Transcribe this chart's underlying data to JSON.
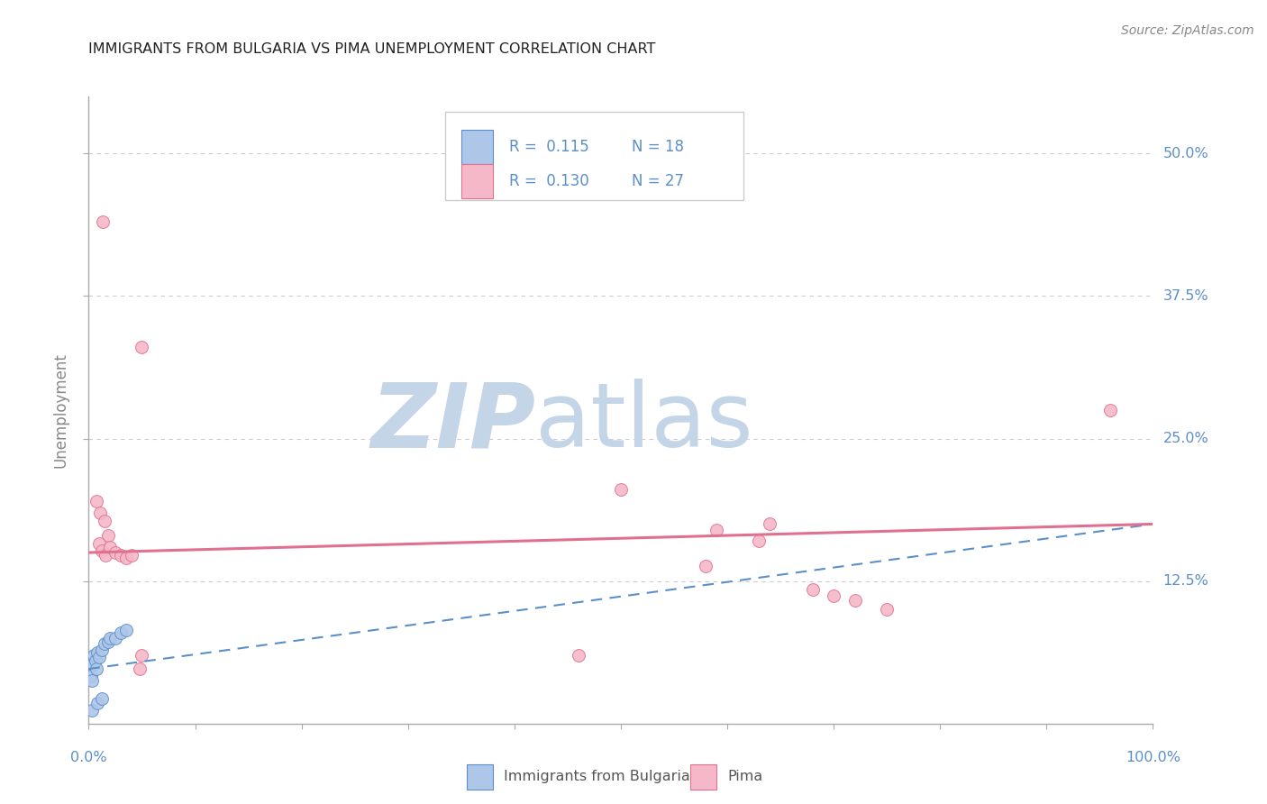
{
  "title": "IMMIGRANTS FROM BULGARIA VS PIMA UNEMPLOYMENT CORRELATION CHART",
  "source": "Source: ZipAtlas.com",
  "ylabel": "Unemployment",
  "xlim": [
    0.0,
    1.0
  ],
  "ylim": [
    0.0,
    0.55
  ],
  "yticks": [
    0.125,
    0.25,
    0.375,
    0.5
  ],
  "ytick_labels": [
    "12.5%",
    "25.0%",
    "37.5%",
    "50.0%"
  ],
  "legend_R_blue": "R =  0.115",
  "legend_N_blue": "N = 18",
  "legend_R_pink": "R =  0.130",
  "legend_N_pink": "N = 27",
  "blue_scatter": [
    [
      0.002,
      0.042
    ],
    [
      0.003,
      0.038
    ],
    [
      0.004,
      0.052
    ],
    [
      0.005,
      0.06
    ],
    [
      0.006,
      0.055
    ],
    [
      0.007,
      0.048
    ],
    [
      0.008,
      0.062
    ],
    [
      0.01,
      0.058
    ],
    [
      0.012,
      0.065
    ],
    [
      0.015,
      0.07
    ],
    [
      0.018,
      0.072
    ],
    [
      0.02,
      0.075
    ],
    [
      0.025,
      0.075
    ],
    [
      0.03,
      0.08
    ],
    [
      0.035,
      0.082
    ],
    [
      0.003,
      0.012
    ],
    [
      0.008,
      0.018
    ],
    [
      0.012,
      0.022
    ]
  ],
  "pink_scatter": [
    [
      0.013,
      0.44
    ],
    [
      0.05,
      0.33
    ],
    [
      0.007,
      0.195
    ],
    [
      0.011,
      0.185
    ],
    [
      0.015,
      0.178
    ],
    [
      0.018,
      0.165
    ],
    [
      0.01,
      0.158
    ],
    [
      0.012,
      0.152
    ],
    [
      0.016,
      0.148
    ],
    [
      0.02,
      0.155
    ],
    [
      0.025,
      0.15
    ],
    [
      0.03,
      0.148
    ],
    [
      0.035,
      0.145
    ],
    [
      0.04,
      0.148
    ],
    [
      0.05,
      0.06
    ],
    [
      0.048,
      0.048
    ],
    [
      0.5,
      0.205
    ],
    [
      0.59,
      0.17
    ],
    [
      0.63,
      0.16
    ],
    [
      0.64,
      0.175
    ],
    [
      0.68,
      0.118
    ],
    [
      0.7,
      0.112
    ],
    [
      0.72,
      0.108
    ],
    [
      0.75,
      0.1
    ],
    [
      0.58,
      0.138
    ],
    [
      0.96,
      0.275
    ],
    [
      0.46,
      0.06
    ]
  ],
  "blue_color": "#aec6e8",
  "blue_edge_color": "#5b8fc9",
  "pink_color": "#f5b8c8",
  "pink_edge_color": "#e07090",
  "watermark_zip_color": "#c5d5e8",
  "watermark_atlas_color": "#c5d5e8",
  "background_color": "#ffffff",
  "title_color": "#222222",
  "axis_label_color": "#5b8fc9",
  "ylabel_color": "#888888",
  "grid_color": "#cccccc",
  "legend_text_color": "#5b8fc9",
  "blue_trend_x": [
    0.0,
    1.0
  ],
  "blue_trend_y": [
    0.048,
    0.175
  ],
  "pink_trend_x": [
    0.0,
    1.0
  ],
  "pink_trend_y": [
    0.15,
    0.175
  ],
  "source_color": "#888888"
}
